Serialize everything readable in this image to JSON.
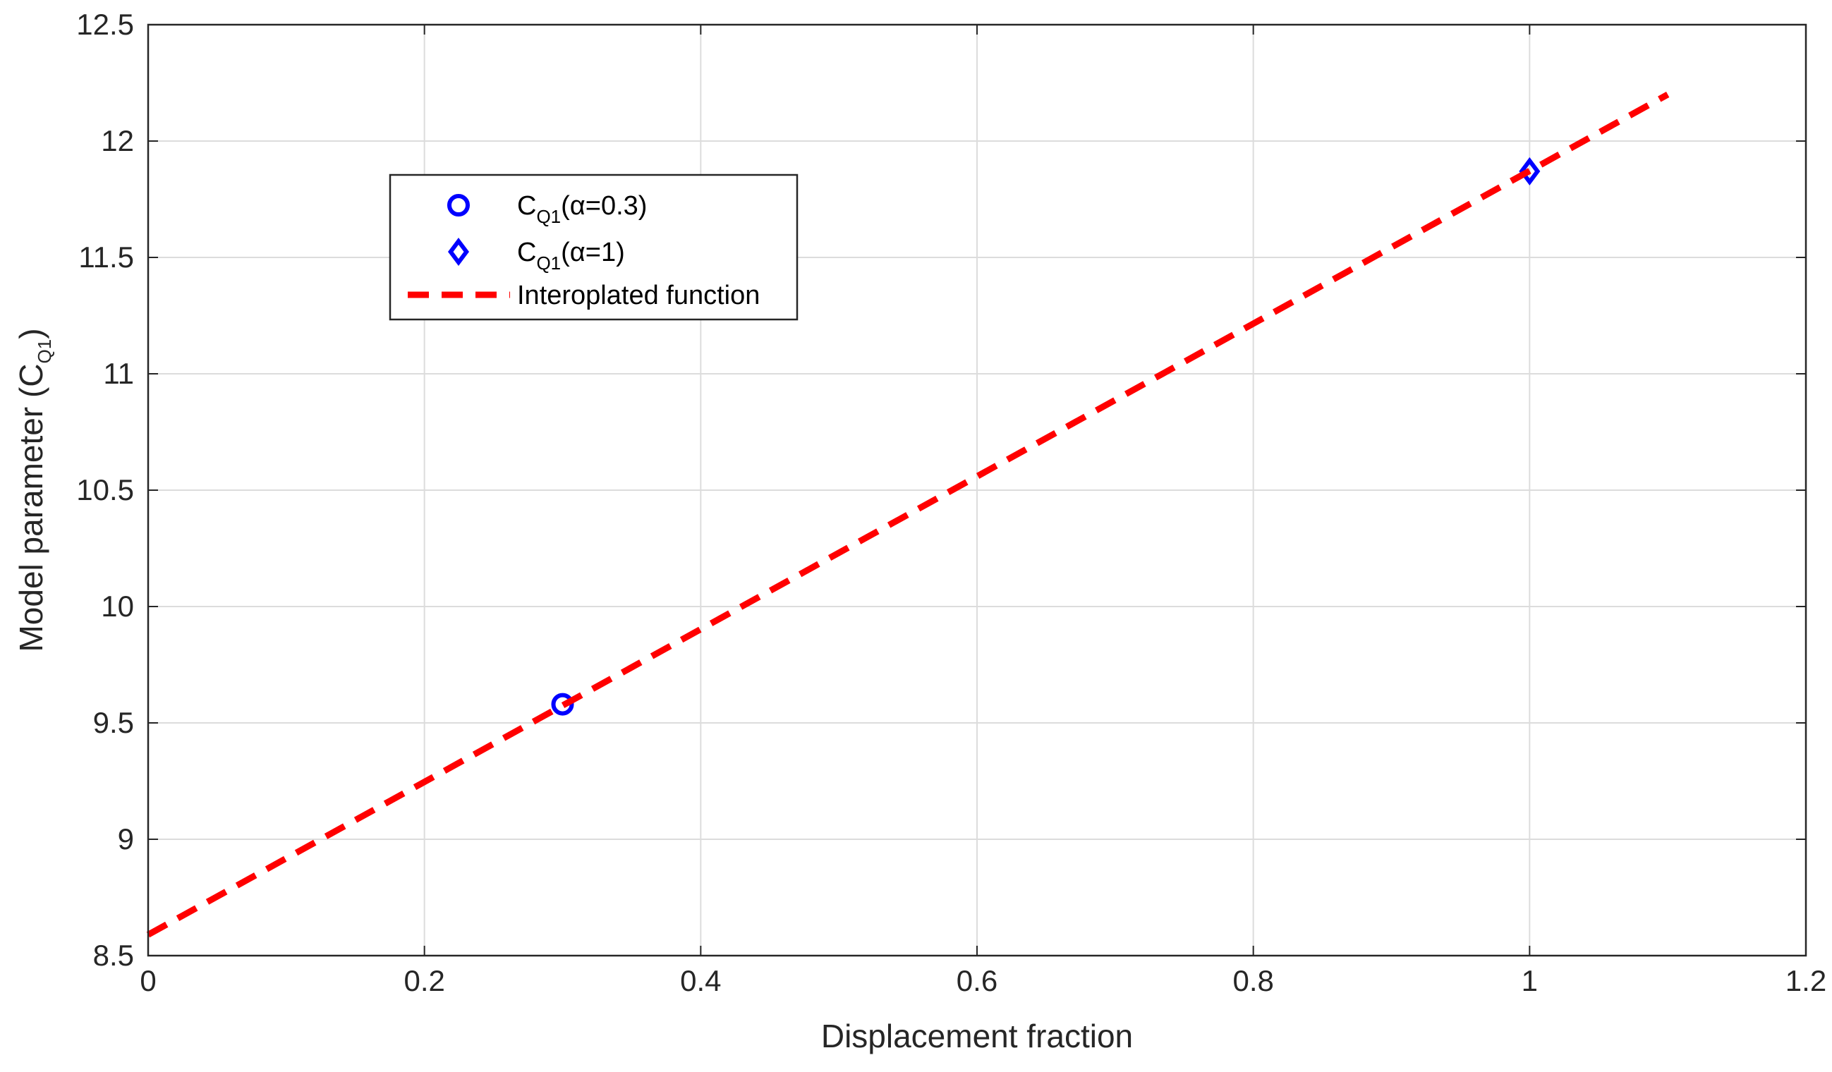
{
  "chart_data": {
    "type": "scatter",
    "xlabel": "Displacement fraction",
    "ylabel": {
      "main": "Model parameter (C",
      "sub": "Q1",
      "close": ")"
    },
    "xlim": [
      0,
      1.2
    ],
    "ylim": [
      8.5,
      12.5
    ],
    "xticks": [
      "0",
      "0.2",
      "0.4",
      "0.6",
      "0.8",
      "1",
      "1.2"
    ],
    "yticks": [
      "8.5",
      "9",
      "9.5",
      "10",
      "10.5",
      "11",
      "11.5",
      "12",
      "12.5"
    ],
    "grid": true,
    "legend_position": "upper-left",
    "series": [
      {
        "name": {
          "base": "C",
          "sub": "Q1",
          "rest": "(α=0.3)"
        },
        "marker": "circle",
        "color": "#0000ff",
        "points": [
          {
            "x": 0.3,
            "y": 9.58
          }
        ]
      },
      {
        "name": {
          "base": "C",
          "sub": "Q1",
          "rest": "(α=1)"
        },
        "marker": "diamond",
        "color": "#0000ff",
        "points": [
          {
            "x": 1.0,
            "y": 11.87
          }
        ]
      },
      {
        "name": {
          "base": "",
          "sub": "",
          "rest": "Interoplated function"
        },
        "marker": "dashed-line",
        "color": "#ff0000",
        "line": {
          "x_start": 0.0,
          "y_start": 8.59,
          "x_end": 1.1,
          "y_end": 12.2
        }
      }
    ]
  }
}
